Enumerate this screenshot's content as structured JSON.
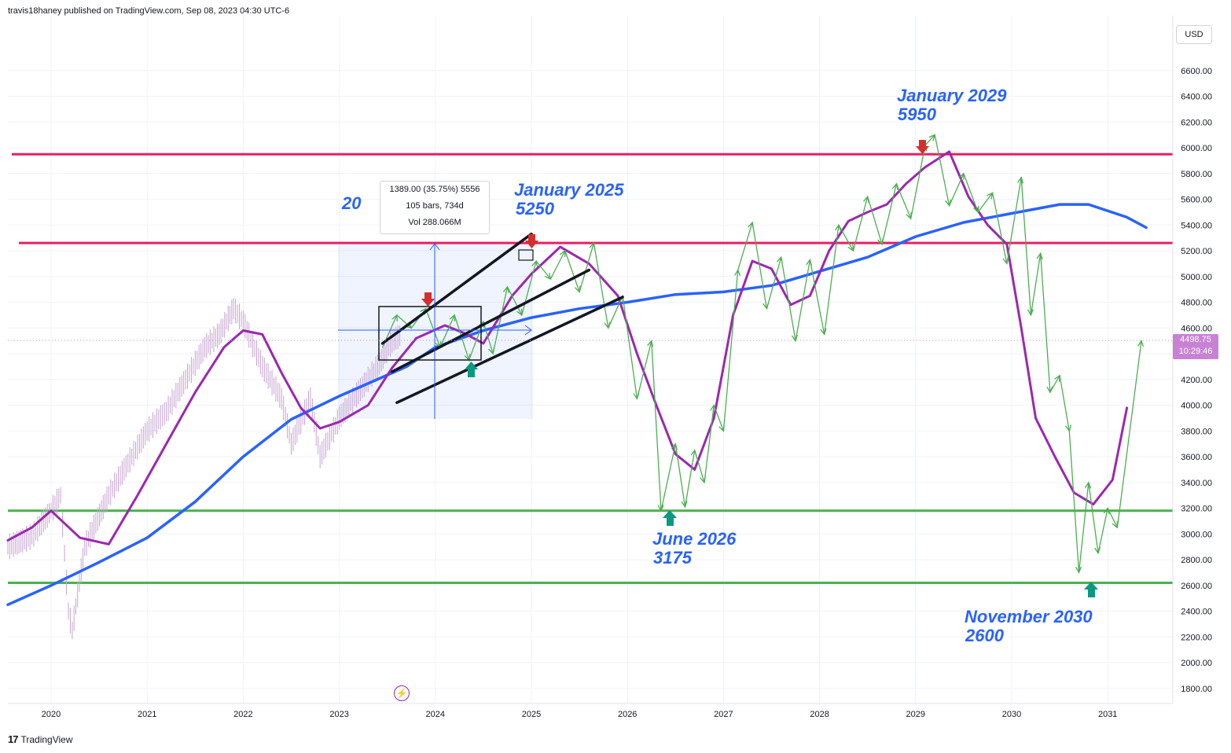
{
  "header": {
    "byline": "travis18haney published on TradingView.com, Sep 08, 2023 04:30 UTC-6"
  },
  "currency_button": "USD",
  "price_badge": {
    "price": "4498.75",
    "countdown": "10:29:46"
  },
  "footer": {
    "brand": "TradingView",
    "logo_icon": "tradingview-logo-icon"
  },
  "measure_tool": {
    "line1": "1389.00 (35.75%) 5556",
    "line2": "105 bars, 734d",
    "line3": "Vol 288.066M"
  },
  "partial_label": "20",
  "replay_icon": "lightning-icon",
  "annotations": [
    {
      "id": "jan2025",
      "line1": "January 2025",
      "line2": "5250"
    },
    {
      "id": "jan2029",
      "line1": "January 2029",
      "line2": "5950"
    },
    {
      "id": "jun2026",
      "line1": "June 2026",
      "line2": "3175"
    },
    {
      "id": "nov2030",
      "line1": "November 2030",
      "line2": "2600"
    }
  ],
  "colors": {
    "resistance": "#e91e63",
    "support": "#4caf50",
    "ma_long": "#2962ff",
    "ma_short": "#9c27b0",
    "projection": "#4caf50",
    "channel": "#131722",
    "candles": "#c6a4d0"
  },
  "chart_data": {
    "type": "line",
    "xaxis_ticks": [
      "2020",
      "2021",
      "2022",
      "2023",
      "2024",
      "2025",
      "2026",
      "2027",
      "2028",
      "2029",
      "2030",
      "2031"
    ],
    "yaxis_ticks": [
      1800,
      2000,
      2200,
      2400,
      2600,
      2800,
      3000,
      3200,
      3400,
      3600,
      3800,
      4000,
      4200,
      4400,
      4600,
      4800,
      5000,
      5200,
      5400,
      5600,
      5800,
      6000,
      6200,
      6400,
      6600
    ],
    "ylim": [
      1700,
      6900
    ],
    "xlim": [
      2019.55,
      2032.0
    ],
    "horizontal_levels": {
      "resistance": [
        5950,
        5260
      ],
      "support": [
        3180,
        2620
      ]
    },
    "current_price": 4498.75,
    "price_history": [
      [
        2019.55,
        2900
      ],
      [
        2019.8,
        2980
      ],
      [
        2020.0,
        3180
      ],
      [
        2020.1,
        3300
      ],
      [
        2020.18,
        2400
      ],
      [
        2020.22,
        2250
      ],
      [
        2020.35,
        2900
      ],
      [
        2020.6,
        3300
      ],
      [
        2020.8,
        3550
      ],
      [
        2021.0,
        3800
      ],
      [
        2021.2,
        3950
      ],
      [
        2021.4,
        4200
      ],
      [
        2021.6,
        4450
      ],
      [
        2021.75,
        4550
      ],
      [
        2021.9,
        4750
      ],
      [
        2022.0,
        4650
      ],
      [
        2022.2,
        4300
      ],
      [
        2022.4,
        4050
      ],
      [
        2022.5,
        3700
      ],
      [
        2022.7,
        4050
      ],
      [
        2022.8,
        3600
      ],
      [
        2023.0,
        3900
      ],
      [
        2023.2,
        4100
      ],
      [
        2023.4,
        4300
      ],
      [
        2023.55,
        4500
      ],
      [
        2023.65,
        4550
      ]
    ],
    "series": [
      {
        "name": "",
        "points": [
          [
            2019.55,
            2450
          ],
          [
            2020.0,
            2600
          ],
          [
            2020.5,
            2780
          ],
          [
            2021.0,
            2970
          ],
          [
            2021.5,
            3250
          ],
          [
            2022.0,
            3600
          ],
          [
            2022.5,
            3890
          ],
          [
            2023.0,
            4070
          ],
          [
            2023.7,
            4300
          ],
          [
            2024.0,
            4450
          ],
          [
            2024.5,
            4580
          ],
          [
            2025.0,
            4680
          ],
          [
            2025.5,
            4750
          ],
          [
            2026.0,
            4800
          ],
          [
            2026.5,
            4860
          ],
          [
            2027.0,
            4880
          ],
          [
            2027.5,
            4930
          ],
          [
            2028.0,
            5040
          ],
          [
            2028.5,
            5150
          ],
          [
            2029.0,
            5310
          ],
          [
            2029.5,
            5420
          ],
          [
            2030.0,
            5490
          ],
          [
            2030.5,
            5560
          ],
          [
            2030.8,
            5560
          ],
          [
            2031.2,
            5460
          ],
          [
            2031.4,
            5380
          ]
        ]
      },
      {
        "name": "",
        "points": [
          [
            2019.55,
            2950
          ],
          [
            2019.8,
            3050
          ],
          [
            2020.0,
            3180
          ],
          [
            2020.3,
            2970
          ],
          [
            2020.6,
            2920
          ],
          [
            2020.9,
            3300
          ],
          [
            2021.2,
            3700
          ],
          [
            2021.5,
            4100
          ],
          [
            2021.8,
            4450
          ],
          [
            2022.0,
            4580
          ],
          [
            2022.2,
            4550
          ],
          [
            2022.4,
            4250
          ],
          [
            2022.6,
            3980
          ],
          [
            2022.8,
            3820
          ],
          [
            2023.0,
            3870
          ],
          [
            2023.3,
            4000
          ],
          [
            2023.55,
            4290
          ],
          [
            2023.8,
            4520
          ],
          [
            2024.1,
            4620
          ],
          [
            2024.3,
            4560
          ],
          [
            2024.5,
            4480
          ],
          [
            2024.8,
            4850
          ],
          [
            2025.0,
            5020
          ],
          [
            2025.3,
            5230
          ],
          [
            2025.6,
            5100
          ],
          [
            2025.9,
            4850
          ],
          [
            2026.1,
            4400
          ],
          [
            2026.3,
            4000
          ],
          [
            2026.5,
            3620
          ],
          [
            2026.7,
            3500
          ],
          [
            2026.9,
            3900
          ],
          [
            2027.1,
            4700
          ],
          [
            2027.3,
            5120
          ],
          [
            2027.5,
            5060
          ],
          [
            2027.7,
            4780
          ],
          [
            2027.9,
            4850
          ],
          [
            2028.1,
            5200
          ],
          [
            2028.3,
            5430
          ],
          [
            2028.5,
            5500
          ],
          [
            2028.7,
            5560
          ],
          [
            2028.9,
            5720
          ],
          [
            2029.1,
            5850
          ],
          [
            2029.35,
            5970
          ],
          [
            2029.55,
            5620
          ],
          [
            2029.75,
            5400
          ],
          [
            2029.95,
            5250
          ],
          [
            2030.1,
            4600
          ],
          [
            2030.25,
            3900
          ],
          [
            2030.45,
            3600
          ],
          [
            2030.65,
            3320
          ],
          [
            2030.85,
            3230
          ],
          [
            2031.05,
            3420
          ],
          [
            2031.2,
            3980
          ]
        ]
      },
      {
        "name": "",
        "points": [
          [
            2023.45,
            4450
          ],
          [
            2023.6,
            4700
          ],
          [
            2023.75,
            4600
          ],
          [
            2023.9,
            4750
          ],
          [
            2024.05,
            4450
          ],
          [
            2024.2,
            4700
          ],
          [
            2024.35,
            4350
          ],
          [
            2024.5,
            4650
          ],
          [
            2024.6,
            4400
          ],
          [
            2024.75,
            4920
          ],
          [
            2024.9,
            4700
          ],
          [
            2025.05,
            5120
          ],
          [
            2025.2,
            4980
          ],
          [
            2025.35,
            5200
          ],
          [
            2025.5,
            4880
          ],
          [
            2025.65,
            5260
          ],
          [
            2025.8,
            4600
          ],
          [
            2025.95,
            4850
          ],
          [
            2026.1,
            4050
          ],
          [
            2026.25,
            4500
          ],
          [
            2026.35,
            3180
          ],
          [
            2026.5,
            3700
          ],
          [
            2026.6,
            3210
          ],
          [
            2026.7,
            3650
          ],
          [
            2026.8,
            3400
          ],
          [
            2026.9,
            4000
          ],
          [
            2027.0,
            3800
          ],
          [
            2027.15,
            5050
          ],
          [
            2027.3,
            5420
          ],
          [
            2027.45,
            4750
          ],
          [
            2027.6,
            5150
          ],
          [
            2027.75,
            4500
          ],
          [
            2027.9,
            5130
          ],
          [
            2028.05,
            4550
          ],
          [
            2028.2,
            5400
          ],
          [
            2028.35,
            5200
          ],
          [
            2028.5,
            5620
          ],
          [
            2028.65,
            5250
          ],
          [
            2028.8,
            5720
          ],
          [
            2028.95,
            5450
          ],
          [
            2029.1,
            6020
          ],
          [
            2029.2,
            6100
          ],
          [
            2029.35,
            5550
          ],
          [
            2029.5,
            5800
          ],
          [
            2029.65,
            5500
          ],
          [
            2029.8,
            5650
          ],
          [
            2029.95,
            5100
          ],
          [
            2030.1,
            5770
          ],
          [
            2030.2,
            4700
          ],
          [
            2030.3,
            5180
          ],
          [
            2030.4,
            4100
          ],
          [
            2030.5,
            4230
          ],
          [
            2030.6,
            3800
          ],
          [
            2030.7,
            2700
          ],
          [
            2030.8,
            3400
          ],
          [
            2030.9,
            2850
          ],
          [
            2031.0,
            3200
          ],
          [
            2031.1,
            3050
          ],
          [
            2031.35,
            4500
          ]
        ]
      }
    ],
    "channel_lines": [
      [
        [
          2023.45,
          4480
        ],
        [
          2025.0,
          5330
        ]
      ],
      [
        [
          2023.55,
          4260
        ],
        [
          2025.6,
          5050
        ]
      ],
      [
        [
          2023.6,
          4020
        ],
        [
          2025.95,
          4840
        ]
      ]
    ]
  }
}
